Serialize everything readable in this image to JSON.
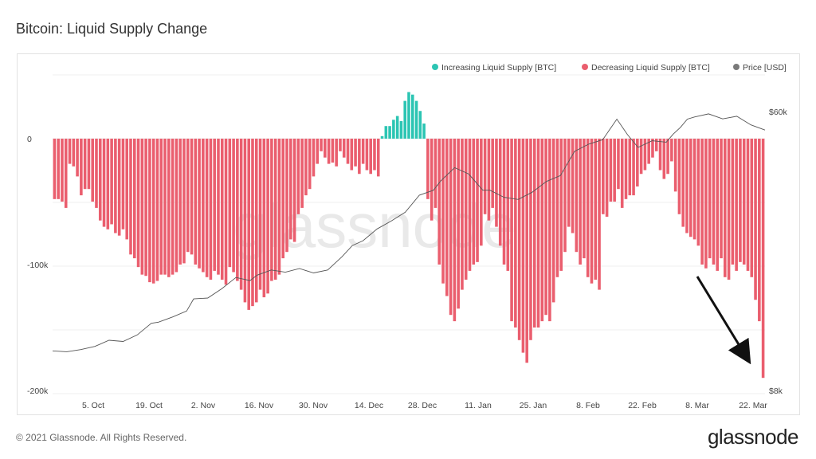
{
  "title": "Bitcoin: Liquid Supply Change",
  "footer": "© 2021 Glassnode. All Rights Reserved.",
  "brand": "glassnode",
  "watermark": "glassnode",
  "colors": {
    "increasing": "#2cc5b3",
    "decreasing": "#ea5e6e",
    "price_line": "#555555",
    "price_legend": "#7a7a7a",
    "grid": "#efefef",
    "annotation_arrow": "#111111"
  },
  "chart_data": {
    "type": "bar",
    "title": "Bitcoin: Liquid Supply Change",
    "legend_position": "top-right",
    "grid": true,
    "series": [
      {
        "name": "Increasing Liquid Supply [BTC]",
        "color": "#2cc5b3",
        "type": "bar"
      },
      {
        "name": "Decreasing Liquid Supply [BTC]",
        "color": "#ea5e6e",
        "type": "bar"
      },
      {
        "name": "Price [USD]",
        "color": "#7a7a7a",
        "type": "line"
      }
    ],
    "x_ticks": [
      "5. Oct",
      "19. Oct",
      "2. Nov",
      "16. Nov",
      "30. Nov",
      "14. Dec",
      "28. Dec",
      "11. Jan",
      "25. Jan",
      "8. Feb",
      "22. Feb",
      "8. Mar",
      "22. Mar"
    ],
    "y_left_ticks": [
      {
        "value": 0,
        "label": "0"
      },
      {
        "value": -100000,
        "label": "-100k"
      },
      {
        "value": -200000,
        "label": "-200k"
      }
    ],
    "y_right_ticks": [
      {
        "value": 60000,
        "label": "$60k"
      },
      {
        "value": 8000,
        "label": "$8k"
      }
    ],
    "ylim_left": [
      -200000,
      40000
    ],
    "ylim_right_log": [
      8000,
      60000
    ],
    "x_range_days": [
      0,
      179
    ],
    "liquid_supply_change_btc": [
      -48000,
      -48000,
      -50000,
      -55000,
      -20000,
      -22000,
      -30000,
      -45000,
      -40000,
      -40000,
      -50000,
      -55000,
      -65000,
      -70000,
      -72000,
      -68000,
      -75000,
      -77000,
      -72000,
      -80000,
      -92000,
      -95000,
      -102000,
      -108000,
      -109000,
      -114000,
      -115000,
      -113000,
      -108000,
      -108000,
      -110000,
      -108000,
      -106000,
      -100000,
      -99000,
      -90000,
      -92000,
      -100000,
      -103000,
      -106000,
      -110000,
      -112000,
      -105000,
      -108000,
      -112000,
      -116000,
      -102000,
      -106000,
      -113000,
      -120000,
      -130000,
      -136000,
      -133000,
      -130000,
      -120000,
      -126000,
      -123000,
      -113000,
      -112000,
      -108000,
      -95000,
      -90000,
      -80000,
      -82000,
      -60000,
      -55000,
      -45000,
      -40000,
      -30000,
      -20000,
      -10000,
      -15000,
      -20000,
      -19000,
      -22000,
      -10000,
      -15000,
      -20000,
      -25000,
      -22000,
      -28000,
      -20000,
      -25000,
      -28000,
      -25000,
      -30000,
      2000,
      10000,
      10000,
      15000,
      18000,
      14000,
      30000,
      37000,
      35000,
      30000,
      22000,
      12000,
      -48000,
      -65000,
      -55000,
      -100000,
      -115000,
      -125000,
      -140000,
      -145000,
      -135000,
      -120000,
      -112000,
      -105000,
      -100000,
      -98000,
      -85000,
      -60000,
      -65000,
      -55000,
      -70000,
      -85000,
      -100000,
      -105000,
      -145000,
      -150000,
      -160000,
      -170000,
      -178000,
      -160000,
      -150000,
      -150000,
      -145000,
      -140000,
      -145000,
      -130000,
      -110000,
      -105000,
      -90000,
      -70000,
      -75000,
      -90000,
      -100000,
      -95000,
      -110000,
      -115000,
      -112000,
      -120000,
      -60000,
      -62000,
      -50000,
      -50000,
      -40000,
      -55000,
      -48000,
      -45000,
      -45000,
      -38000,
      -28000,
      -25000,
      -20000,
      -15000,
      -10000,
      -25000,
      -32000,
      -28000,
      -18000,
      -42000,
      -60000,
      -70000,
      -75000,
      -78000,
      -80000,
      -85000,
      -100000,
      -103000,
      -95000,
      -100000,
      -105000,
      -95000,
      -110000,
      -112000,
      -100000,
      -105000,
      -98000,
      -100000,
      -105000,
      -110000,
      -128000,
      -145000,
      -190000
    ],
    "price_usd_points": [
      [
        0,
        10650
      ],
      [
        4,
        10580
      ],
      [
        8,
        10750
      ],
      [
        12,
        11000
      ],
      [
        16,
        11500
      ],
      [
        20,
        11400
      ],
      [
        24,
        11950
      ],
      [
        28,
        13000
      ],
      [
        30,
        13100
      ],
      [
        34,
        13600
      ],
      [
        38,
        14200
      ],
      [
        40,
        15500
      ],
      [
        44,
        15600
      ],
      [
        48,
        16700
      ],
      [
        52,
        18100
      ],
      [
        56,
        17700
      ],
      [
        58,
        18400
      ],
      [
        62,
        19100
      ],
      [
        66,
        18800
      ],
      [
        70,
        19300
      ],
      [
        74,
        18700
      ],
      [
        78,
        19100
      ],
      [
        82,
        21000
      ],
      [
        85,
        22800
      ],
      [
        88,
        23600
      ],
      [
        92,
        25700
      ],
      [
        96,
        27200
      ],
      [
        100,
        29000
      ],
      [
        104,
        32800
      ],
      [
        108,
        34000
      ],
      [
        110,
        36300
      ],
      [
        114,
        40000
      ],
      [
        118,
        38200
      ],
      [
        122,
        34000
      ],
      [
        124,
        34000
      ],
      [
        128,
        32300
      ],
      [
        132,
        31800
      ],
      [
        136,
        33500
      ],
      [
        140,
        36200
      ],
      [
        144,
        37800
      ],
      [
        148,
        45000
      ],
      [
        152,
        47400
      ],
      [
        156,
        49000
      ],
      [
        160,
        56800
      ],
      [
        163,
        50800
      ],
      [
        166,
        46300
      ],
      [
        170,
        48600
      ],
      [
        174,
        48100
      ],
      [
        176,
        51000
      ],
      [
        178,
        53500
      ],
      [
        180,
        56800
      ],
      [
        182,
        57700
      ],
      [
        186,
        59000
      ],
      [
        190,
        56900
      ],
      [
        194,
        58000
      ],
      [
        198,
        54500
      ],
      [
        202,
        52500
      ]
    ],
    "annotations": [
      {
        "type": "arrow",
        "from": "around 8. Mar at about -100k",
        "to": "last bar near -190k"
      }
    ]
  }
}
